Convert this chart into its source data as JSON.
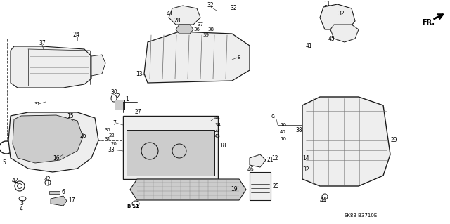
{
  "background_color": "#ffffff",
  "diagram_code": "SK83-B3710E",
  "line_color": "#1a1a1a",
  "text_color": "#000000",
  "gray_fill": "#d8d8d8",
  "light_gray": "#eeeeee",
  "med_gray": "#cccccc"
}
